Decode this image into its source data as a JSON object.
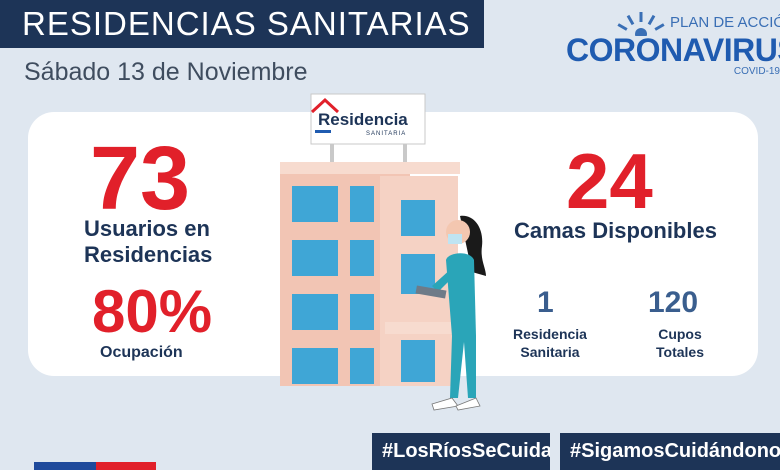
{
  "header": {
    "title": "RESIDENCIAS SANITARIAS",
    "date": "Sábado 13 de Noviembre"
  },
  "logo": {
    "plan": "PLAN DE ACCIÓN",
    "brand": "CORONAVIRUS",
    "sub": "COVID-19"
  },
  "sign": {
    "name": "Residencia",
    "sub": "SANITARIA"
  },
  "stats": {
    "usuarios_value": "73",
    "usuarios_label_1": "Usuarios en",
    "usuarios_label_2": "Residencias",
    "ocupacion_value": "80%",
    "ocupacion_label": "Ocupación",
    "camas_value": "24",
    "camas_label": "Camas Disponibles",
    "residencias_value": "1",
    "residencias_label_1": "Residencia",
    "residencias_label_2": "Sanitaria",
    "cupos_value": "120",
    "cupos_label_1": "Cupos",
    "cupos_label_2": "Totales"
  },
  "footer": {
    "hashtag_1": "#LosRíosSeCuida",
    "hashtag_2": "#SigamosCuidándonos"
  },
  "colors": {
    "navy": "#1d3457",
    "red": "#e1202a",
    "background": "#dfe7f0",
    "brand_blue": "#1f5bb0"
  }
}
